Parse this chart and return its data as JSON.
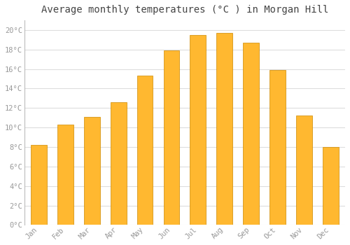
{
  "title": "Average monthly temperatures (°C ) in Morgan Hill",
  "months": [
    "Jan",
    "Feb",
    "Mar",
    "Apr",
    "May",
    "Jun",
    "Jul",
    "Aug",
    "Sep",
    "Oct",
    "Nov",
    "Dec"
  ],
  "values": [
    8.2,
    10.3,
    11.1,
    12.6,
    15.3,
    17.9,
    19.5,
    19.7,
    18.7,
    15.9,
    11.2,
    8.0
  ],
  "bar_color_top": "#FFA500",
  "bar_color_bottom": "#FFD060",
  "bar_edge_color": "#CC8800",
  "background_color": "#FFFFFF",
  "plot_bg_color": "#FFFFFF",
  "grid_color": "#DDDDDD",
  "tick_color": "#999999",
  "title_color": "#444444",
  "label_color": "#999999",
  "ylim": [
    0,
    21
  ],
  "ytick_step": 2,
  "title_fontsize": 10,
  "tick_fontsize": 7.5,
  "bar_width": 0.6
}
